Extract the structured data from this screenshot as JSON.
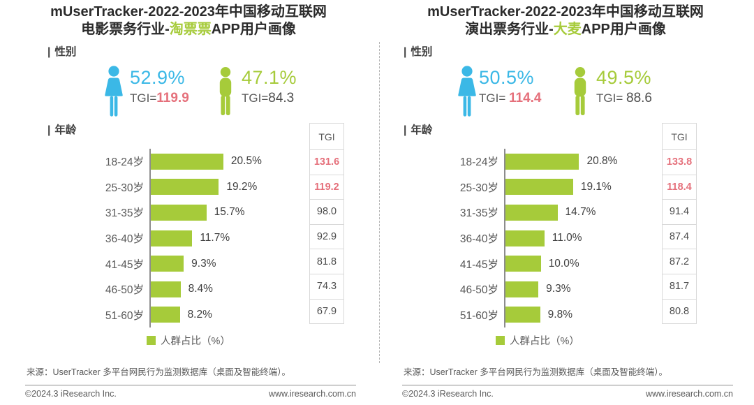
{
  "accent": {
    "green": "#a6cb3a",
    "blue": "#3bb8e6",
    "red": "#e5707b"
  },
  "charts": [
    {
      "title_line1": "mUserTracker-2022-2023年中国移动互联网",
      "title_line2_prefix": "电影票务行业-",
      "title_line2_highlight": "淘票票",
      "title_line2_suffix": "APP用户画像",
      "gender_section_label": "性别",
      "section_marker": "|",
      "female": {
        "percent": "52.9%",
        "tgi_label": "TGI=",
        "tgi_value": "119.9"
      },
      "male": {
        "percent": "47.1%",
        "tgi_label": "TGI=",
        "tgi_value": "84.3"
      },
      "age_section_label": "年龄",
      "tgi_header": "TGI",
      "legend_label": "人群占比（%）"
    },
    {
      "title_line1": "mUserTracker-2022-2023年中国移动互联网",
      "title_line2_prefix": "演出票务行业-",
      "title_line2_highlight": "大麦",
      "title_line2_suffix": "APP用户画像",
      "gender_section_label": "性别",
      "section_marker": "|",
      "female": {
        "percent": "50.5%",
        "tgi_label": "TGI=",
        "tgi_value": "114.4"
      },
      "male": {
        "percent": "49.5%",
        "tgi_label": "TGI=",
        "tgi_value": "88.6"
      },
      "age_section_label": "年龄",
      "tgi_header": "TGI",
      "legend_label": "人群占比（%）"
    }
  ],
  "footer": {
    "source_note": "来源：UserTracker 多平台网民行为监测数据库（桌面及智能终端）。",
    "copyright": "©2024.3 iResearch Inc.",
    "website": "www.iresearch.com.cn"
  },
  "chart_data": [
    {
      "type": "bar",
      "orientation": "horizontal",
      "title": "mUserTracker-2022-2023年中国移动互联网电影票务行业-淘票票APP用户画像",
      "categories": [
        "18-24岁",
        "25-30岁",
        "31-35岁",
        "36-40岁",
        "41-45岁",
        "46-50岁",
        "51-60岁"
      ],
      "series": [
        {
          "name": "人群占比（%）",
          "values": [
            20.5,
            19.2,
            15.7,
            11.7,
            9.3,
            8.4,
            8.2
          ]
        },
        {
          "name": "TGI",
          "values": [
            131.6,
            119.2,
            98.0,
            92.9,
            81.8,
            74.3,
            67.9
          ]
        }
      ],
      "gender": {
        "female_percent": 52.9,
        "female_tgi": 119.9,
        "male_percent": 47.1,
        "male_tgi": 84.3
      },
      "xlabel": "人群占比（%）",
      "ylabel": "年龄",
      "xlim": [
        0,
        25
      ],
      "grid": false,
      "legend_position": "bottom",
      "bar_color": "#a6cb3a",
      "tgi_highlight_threshold": 100
    },
    {
      "type": "bar",
      "orientation": "horizontal",
      "title": "mUserTracker-2022-2023年中国移动互联网演出票务行业-大麦APP用户画像",
      "categories": [
        "18-24岁",
        "25-30岁",
        "31-35岁",
        "36-40岁",
        "41-45岁",
        "46-50岁",
        "51-60岁"
      ],
      "series": [
        {
          "name": "人群占比（%）",
          "values": [
            20.8,
            19.1,
            14.7,
            11.0,
            10.0,
            9.3,
            9.8
          ]
        },
        {
          "name": "TGI",
          "values": [
            133.8,
            118.4,
            91.4,
            87.4,
            87.2,
            81.7,
            80.8
          ]
        }
      ],
      "gender": {
        "female_percent": 50.5,
        "female_tgi": 114.4,
        "male_percent": 49.5,
        "male_tgi": 88.6
      },
      "xlabel": "人群占比（%）",
      "ylabel": "年龄",
      "xlim": [
        0,
        25
      ],
      "grid": false,
      "legend_position": "bottom",
      "bar_color": "#a6cb3a",
      "tgi_highlight_threshold": 100
    }
  ]
}
